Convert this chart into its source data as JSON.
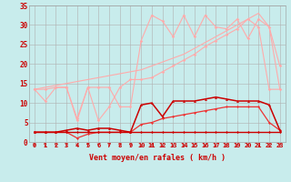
{
  "xlabel": "Vent moyen/en rafales ( km/h )",
  "background_color": "#c8ecec",
  "grid_color": "#b0b0b0",
  "x": [
    0,
    1,
    2,
    3,
    4,
    5,
    6,
    7,
    8,
    9,
    10,
    11,
    12,
    13,
    14,
    15,
    16,
    17,
    18,
    19,
    20,
    21,
    22,
    23
  ],
  "line_flat_y": [
    2.5,
    2.5,
    2.5,
    2.5,
    2.5,
    2.5,
    2.5,
    2.5,
    2.5,
    2.5,
    2.5,
    2.5,
    2.5,
    2.5,
    2.5,
    2.5,
    2.5,
    2.5,
    2.5,
    2.5,
    2.5,
    2.5,
    2.5,
    2.5
  ],
  "line_avg_y": [
    2.5,
    2.5,
    2.5,
    2.5,
    1.0,
    2.0,
    2.5,
    2.5,
    2.5,
    2.5,
    4.5,
    5.0,
    6.0,
    6.5,
    7.0,
    7.5,
    8.0,
    8.5,
    9.0,
    9.0,
    9.0,
    9.0,
    5.0,
    3.0
  ],
  "line_gust_y": [
    2.5,
    2.5,
    2.5,
    3.0,
    3.5,
    3.0,
    3.5,
    3.5,
    3.0,
    2.5,
    9.5,
    10.0,
    6.5,
    10.5,
    10.5,
    10.5,
    11.0,
    11.5,
    11.0,
    10.5,
    10.5,
    10.5,
    9.5,
    3.0
  ],
  "line_noisy_y": [
    13.5,
    10.5,
    14.0,
    14.0,
    6.0,
    14.0,
    14.0,
    14.0,
    9.0,
    9.0,
    26.0,
    32.5,
    31.0,
    27.0,
    32.5,
    27.0,
    32.5,
    29.5,
    29.0,
    31.5,
    26.5,
    31.5,
    29.5,
    19.5
  ],
  "line_diag2_y": [
    13.5,
    13.5,
    14.0,
    14.0,
    5.5,
    14.0,
    5.5,
    9.0,
    14.0,
    16.0,
    16.0,
    16.5,
    18.0,
    19.5,
    21.0,
    22.5,
    24.5,
    26.0,
    27.5,
    29.0,
    31.5,
    29.5,
    13.5,
    13.5
  ],
  "line_diag1_y": [
    13.5,
    14.0,
    14.5,
    15.0,
    15.5,
    16.0,
    16.5,
    17.0,
    17.5,
    18.0,
    18.5,
    19.5,
    20.5,
    21.5,
    22.5,
    24.0,
    25.5,
    27.0,
    28.5,
    30.0,
    31.5,
    33.0,
    29.5,
    13.5
  ],
  "ylim": [
    0,
    35
  ],
  "yticks": [
    0,
    5,
    10,
    15,
    20,
    25,
    30,
    35
  ],
  "xticks": [
    0,
    1,
    2,
    3,
    4,
    5,
    6,
    7,
    8,
    9,
    10,
    11,
    12,
    13,
    14,
    15,
    16,
    17,
    18,
    19,
    20,
    21,
    22,
    23
  ],
  "xtick_labels": [
    "0",
    "1",
    "2",
    "3",
    "4",
    "5",
    "6",
    "7",
    "8",
    "9",
    "10",
    "11",
    "12",
    "13",
    "14",
    "15",
    "16",
    "17",
    "18",
    "19",
    "20",
    "21",
    "22",
    "23"
  ],
  "color_dark_red": "#cc0000",
  "color_mid_red": "#ee3333",
  "color_light_pink": "#ffaaaa",
  "arrow_color": "#cc2222",
  "tick_fontsize": 5,
  "xlabel_fontsize": 6
}
